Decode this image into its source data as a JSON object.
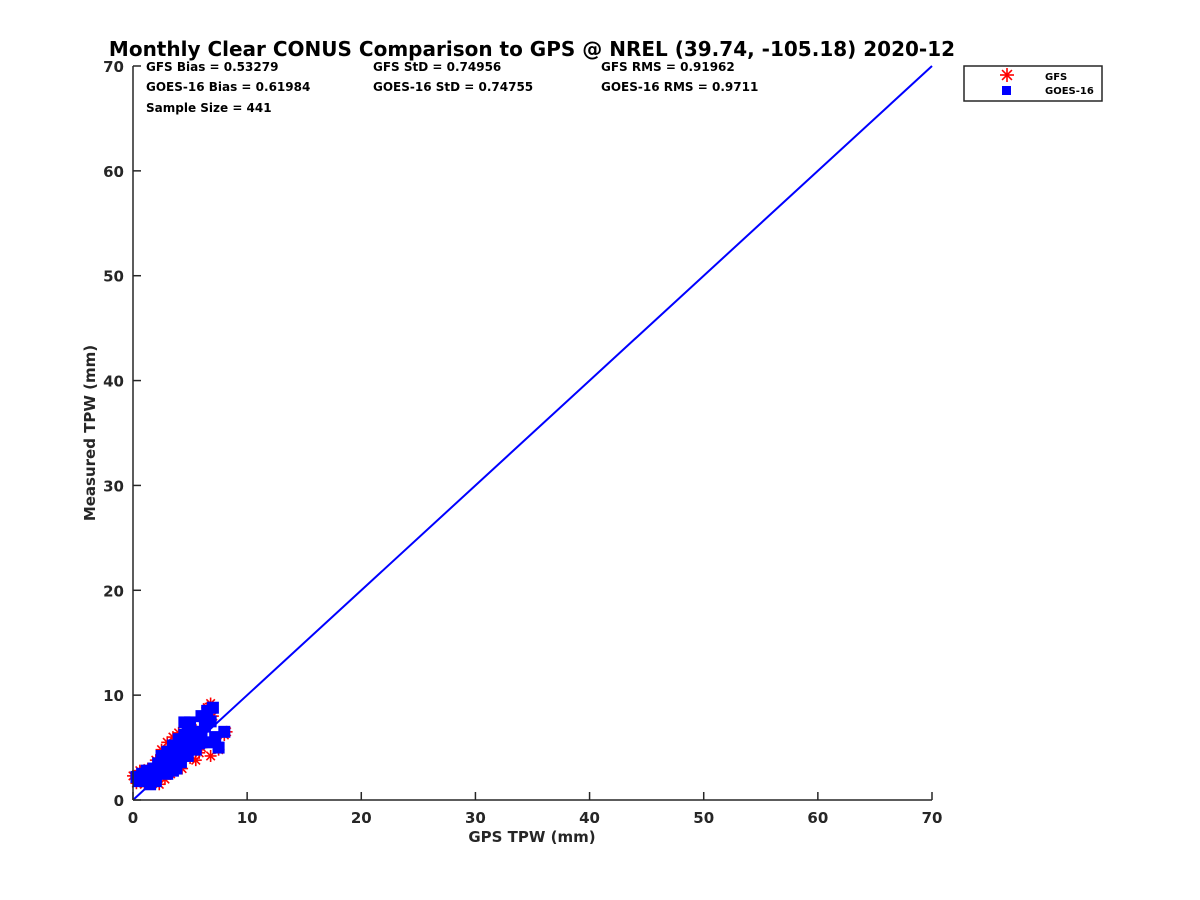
{
  "chart_data": {
    "type": "scatter",
    "title": "Monthly Clear CONUS Comparison to GPS @ NREL (39.74, -105.18) 2020-12",
    "xlabel": "GPS TPW (mm)",
    "ylabel": "Measured TPW (mm)",
    "xlim": [
      0,
      70
    ],
    "ylim": [
      0,
      70
    ],
    "xticks": [
      "0",
      "10",
      "20",
      "30",
      "40",
      "50",
      "60",
      "70"
    ],
    "yticks": [
      "0",
      "10",
      "20",
      "30",
      "40",
      "50",
      "60",
      "70"
    ],
    "grid": false,
    "legend_placement": "outside-top-right",
    "stats": [
      "GFS Bias = 0.53279",
      "GFS StD = 0.74956",
      "GFS RMS = 0.91962",
      "GOES-16 Bias = 0.61984",
      "GOES-16 StD = 0.74755",
      "GOES-16 RMS = 0.9711",
      "Sample Size = 441"
    ],
    "reference_line": {
      "name": "1:1",
      "color": "#0000ff",
      "x": [
        0,
        70
      ],
      "y": [
        0,
        70
      ]
    },
    "series": [
      {
        "name": "GFS",
        "marker": "asterisk",
        "color": "#ff0000",
        "points": [
          [
            0,
            2.3
          ],
          [
            0.3,
            1.6
          ],
          [
            0.6,
            2.8
          ],
          [
            1,
            1.5
          ],
          [
            1.3,
            3
          ],
          [
            1.7,
            2
          ],
          [
            2,
            3.8
          ],
          [
            2.3,
            1.5
          ],
          [
            2.5,
            4.8
          ],
          [
            2.8,
            2
          ],
          [
            3,
            5.5
          ],
          [
            3.3,
            2.5
          ],
          [
            3.5,
            6
          ],
          [
            3.8,
            3.4
          ],
          [
            4,
            6.4
          ],
          [
            4.3,
            3
          ],
          [
            4.6,
            5.8
          ],
          [
            5,
            4
          ],
          [
            5.2,
            6.8
          ],
          [
            5.5,
            3.8
          ],
          [
            5.8,
            4.5
          ],
          [
            6,
            5
          ],
          [
            6.2,
            7.5
          ],
          [
            6.5,
            8.8
          ],
          [
            6.8,
            9.2
          ],
          [
            7,
            8
          ],
          [
            7.2,
            5.8
          ],
          [
            7.5,
            4.8
          ],
          [
            8,
            6.2
          ],
          [
            8.2,
            6.5
          ],
          [
            6.8,
            4.2
          ],
          [
            1,
            2.8
          ],
          [
            2,
            2.6
          ],
          [
            3,
            3.8
          ],
          [
            4,
            4.8
          ],
          [
            5,
            5.4
          ],
          [
            6,
            6.4
          ]
        ]
      },
      {
        "name": "GOES-16",
        "marker": "square",
        "color": "#0000ff",
        "points": [
          [
            0.3,
            2.2
          ],
          [
            0.5,
            1.8
          ],
          [
            0.8,
            2.5
          ],
          [
            1,
            2
          ],
          [
            1.2,
            2.8
          ],
          [
            1.5,
            2.4
          ],
          [
            1.8,
            3
          ],
          [
            2,
            2.2
          ],
          [
            2.2,
            3.5
          ],
          [
            2.5,
            2.8
          ],
          [
            2.5,
            4.2
          ],
          [
            2.8,
            3.2
          ],
          [
            3,
            4.6
          ],
          [
            3,
            2.5
          ],
          [
            3.2,
            3.8
          ],
          [
            3.5,
            4.2
          ],
          [
            3.5,
            5.2
          ],
          [
            3.8,
            3
          ],
          [
            4,
            4.5
          ],
          [
            4,
            5.8
          ],
          [
            4.2,
            3.6
          ],
          [
            4.5,
            5
          ],
          [
            4.5,
            6.2
          ],
          [
            4.5,
            7.4
          ],
          [
            4.8,
            4.2
          ],
          [
            5,
            5.5
          ],
          [
            5,
            7.4
          ],
          [
            5.2,
            6.5
          ],
          [
            5.5,
            4.8
          ],
          [
            5.5,
            6
          ],
          [
            5.8,
            5.4
          ],
          [
            6,
            6.5
          ],
          [
            6,
            8
          ],
          [
            6.3,
            7
          ],
          [
            6.5,
            5.5
          ],
          [
            6.5,
            8.5
          ],
          [
            6.8,
            7.5
          ],
          [
            7,
            8.8
          ],
          [
            7.2,
            6
          ],
          [
            7.5,
            5
          ],
          [
            8,
            6.5
          ],
          [
            2,
            1.8
          ],
          [
            1.5,
            1.5
          ],
          [
            3.5,
            2.8
          ],
          [
            4.8,
            6.8
          ]
        ]
      }
    ]
  }
}
